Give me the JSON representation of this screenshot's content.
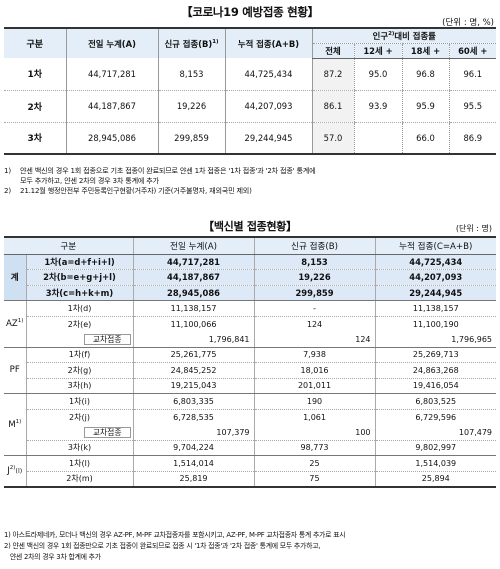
{
  "section1": {
    "title": "【코로나19 예방접종 현황】",
    "unit": "(단위 : 명, %)",
    "headers": {
      "gubun": "구분",
      "prev": "전일 누계(A)",
      "new": "신규 접종(B)",
      "new_sup": "1)",
      "cum": "누적 접종(A+B)",
      "rate_group": "인구",
      "rate_group_sup": "2)",
      "rate_group_rest": "대비 접종률",
      "all": "전체",
      "age12": "12세 +",
      "age18": "18세 +",
      "age60": "60세 +"
    },
    "rows": [
      {
        "label": "1차",
        "prev": "44,717,281",
        "new": "8,153",
        "cum": "44,725,434",
        "all": "87.2",
        "age12": "95.0",
        "age18": "96.8",
        "age60": "96.1"
      },
      {
        "label": "2차",
        "prev": "44,187,867",
        "new": "19,226",
        "cum": "44,207,093",
        "all": "86.1",
        "age12": "93.9",
        "age18": "95.9",
        "age60": "95.5"
      },
      {
        "label": "3차",
        "prev": "28,945,086",
        "new": "299,859",
        "cum": "29,244,945",
        "all": "57.0",
        "age12": "",
        "age18": "66.0",
        "age60": "86.9"
      }
    ],
    "notes": [
      {
        "mark": "1)",
        "text": "얀센 백신의 경우 1회 접종으로 기초 접종이 완료되므로 얀센 1차 접종은 '1차 접종'과 '2차 접종' 통계에"
      },
      {
        "mark": "",
        "text": "모두 추가하고, 얀센 2차의 경우 3차 통계에 추가"
      },
      {
        "mark": "2)",
        "text": "21.12월 행정안전부 주민등록인구현황(거주자) 기준(거주불명자, 재외국민 제외)"
      }
    ]
  },
  "section2": {
    "title": "【백신별 접종현황】",
    "unit": "(단위 : 명)",
    "headers": {
      "gubun": "구분",
      "prev": "전일 누계(A)",
      "new": "신규 접종(B)",
      "cum": "누적 접종(C=A+B)"
    },
    "groups": [
      {
        "name": "계",
        "sup": "",
        "rows": [
          {
            "label": "1차(a=d+f+i+l)",
            "prev": "44,717,281",
            "new": "8,153",
            "cum": "44,725,434"
          },
          {
            "label": "2차(b=e+g+j+l)",
            "prev": "44,187,867",
            "new": "19,226",
            "cum": "44,207,093"
          },
          {
            "label": "3차(c=h+k+m)",
            "prev": "28,945,086",
            "new": "299,859",
            "cum": "29,244,945"
          }
        ]
      },
      {
        "name": "AZ",
        "sup": "1)",
        "rows": [
          {
            "label": "1차(d)",
            "prev": "11,138,157",
            "new": "-",
            "cum": "11,138,157"
          },
          {
            "label": "2차(e)",
            "prev": "11,100,066",
            "new": "124",
            "cum": "11,100,190"
          },
          {
            "label": "교차접종",
            "prev": "1,796,841",
            "new": "124",
            "cum": "1,796,965",
            "cross": true
          }
        ]
      },
      {
        "name": "PF",
        "sup": "",
        "rows": [
          {
            "label": "1차(f)",
            "prev": "25,261,775",
            "new": "7,938",
            "cum": "25,269,713"
          },
          {
            "label": "2차(g)",
            "prev": "24,845,252",
            "new": "18,016",
            "cum": "24,863,268"
          },
          {
            "label": "3차(h)",
            "prev": "19,215,043",
            "new": "201,011",
            "cum": "19,416,054"
          }
        ]
      },
      {
        "name": "M",
        "sup": "1)",
        "rows": [
          {
            "label": "1차(i)",
            "prev": "6,803,335",
            "new": "190",
            "cum": "6,803,525"
          },
          {
            "label": "2차(j)",
            "prev": "6,728,535",
            "new": "1,061",
            "cum": "6,729,596"
          },
          {
            "label": "교차접종",
            "prev": "107,379",
            "new": "100",
            "cum": "107,479",
            "cross": true
          },
          {
            "label": "3차(k)",
            "prev": "9,704,224",
            "new": "98,773",
            "cum": "9,802,997"
          }
        ]
      },
      {
        "name": "J",
        "sup": "2)",
        "suffix": "(l)",
        "rows": [
          {
            "label": "1차(l)",
            "prev": "1,514,014",
            "new": "25",
            "cum": "1,514,039"
          },
          {
            "label": "2차(m)",
            "prev": "25,819",
            "new": "75",
            "cum": "25,894"
          }
        ]
      }
    ],
    "notes": [
      "1) 아스트라제네카, 모더나 백신의 경우 AZ-PF, M-PF 교차접종자를 포함시키고, AZ-PF, M-PF 교차접종자 통계 추가로 표시",
      "2) 얀센 백신의 경우 1회 접종만으로 기초 접종이 완료되므로 접종 시 '1차 접종'과 '2차 접종' 통계에 모두 추가하고,",
      "   얀센 2차의 경우 3차 합계에 추가"
    ]
  }
}
